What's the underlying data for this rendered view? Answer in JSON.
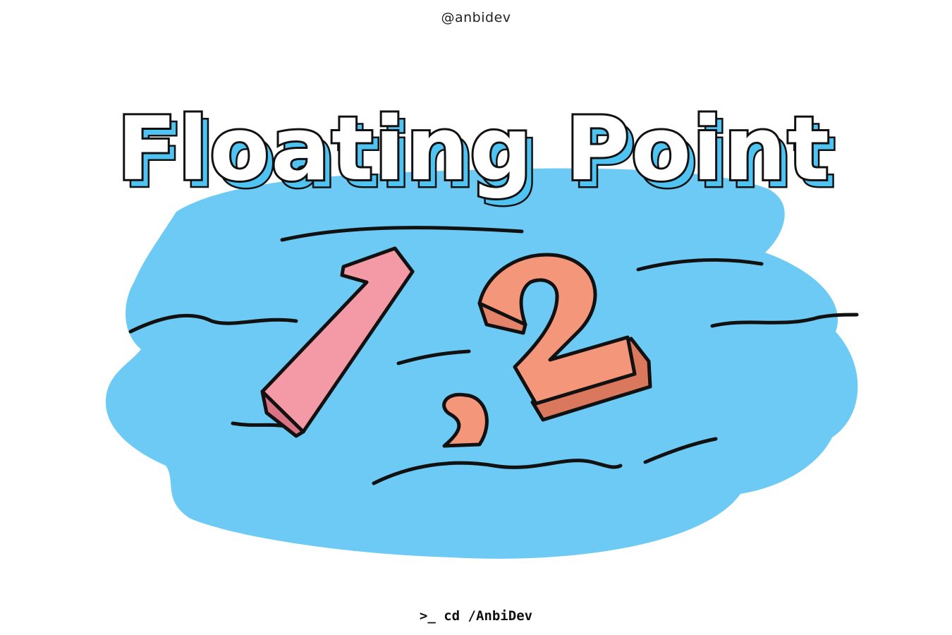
{
  "header": {
    "handle": "@anbidev"
  },
  "title": {
    "text": "Floating Point"
  },
  "illustration": {
    "numeral_one": "1",
    "separator": ",",
    "numeral_two": "2",
    "colors": {
      "water": "#6ccaf4",
      "outline": "#111111",
      "one_fill": "#f39aa6",
      "two_fill": "#f4967a",
      "title_shadow": "#4fc3f1"
    }
  },
  "footer": {
    "prompt": ">_ cd /AnbiDev"
  }
}
